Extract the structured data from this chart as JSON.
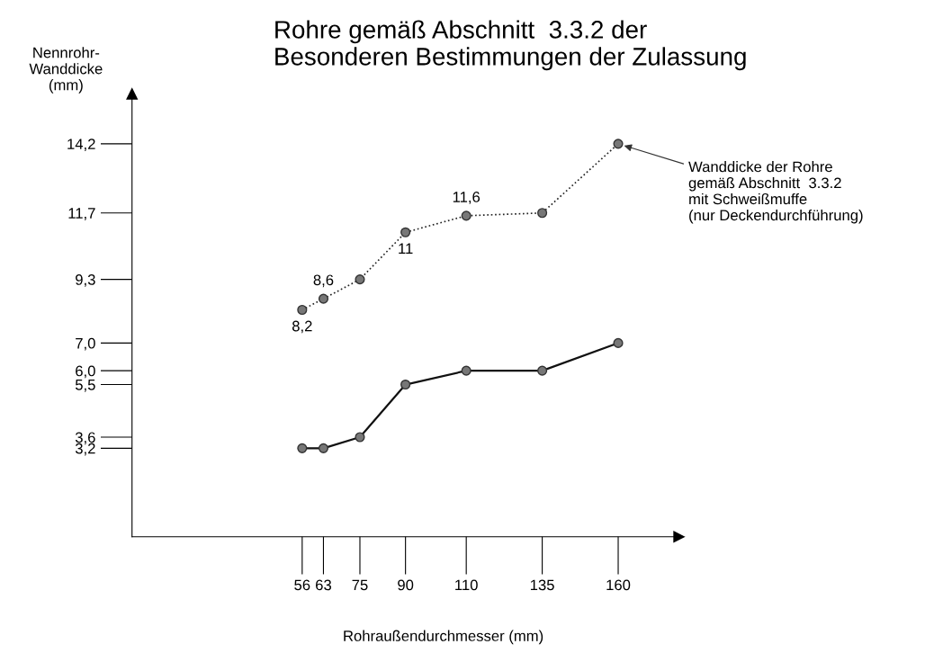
{
  "chart_data": {
    "type": "line",
    "title": "Rohre gemäß Abschnitt  3.3.2 der\nBesonderen Bestimmungen der Zulassung",
    "xlabel": "Rohraußendurchmesser (mm)",
    "ylabel": "Nennrohr-\nWanddicke\n(mm)",
    "x": [
      56,
      63,
      75,
      90,
      110,
      135,
      160
    ],
    "series": [
      {
        "color": "#222222",
        "line_style": "dotted",
        "values": [
          8.2,
          8.6,
          9.3,
          11,
          11.6,
          11.7,
          14.2
        ],
        "value_labels": [
          "8,2",
          "8,6",
          null,
          "11",
          "11,6",
          null,
          null
        ]
      },
      {
        "color": "#111111",
        "line_style": "solid",
        "values": [
          3.2,
          3.2,
          3.6,
          5.5,
          6.0,
          6.0,
          7.0
        ]
      }
    ],
    "marker": "circle",
    "xlim": [
      0,
      180
    ],
    "xticks": [
      56,
      63,
      75,
      90,
      110,
      135,
      160
    ],
    "ylim": [
      0,
      16
    ],
    "yticks": [
      {
        "value": 3.2,
        "label": "3,2"
      },
      {
        "value": 3.6,
        "label": "3,6"
      },
      {
        "value": 5.5,
        "label": "5,5"
      },
      {
        "value": 6.0,
        "label": "6,0"
      },
      {
        "value": 7.0,
        "label": "7,0"
      },
      {
        "value": 9.3,
        "label": "9,3"
      },
      {
        "value": 11.7,
        "label": "11,7"
      },
      {
        "value": 14.2,
        "label": "14,2"
      }
    ],
    "annotations": [
      {
        "text": "Wanddicke der Rohre\ngemäß Abschnitt  3.3.2\nmit Schweißmuffe\n(nur Deckendurchführung)",
        "x": 160,
        "y": 14.2
      }
    ],
    "grid": false,
    "legend": false
  }
}
